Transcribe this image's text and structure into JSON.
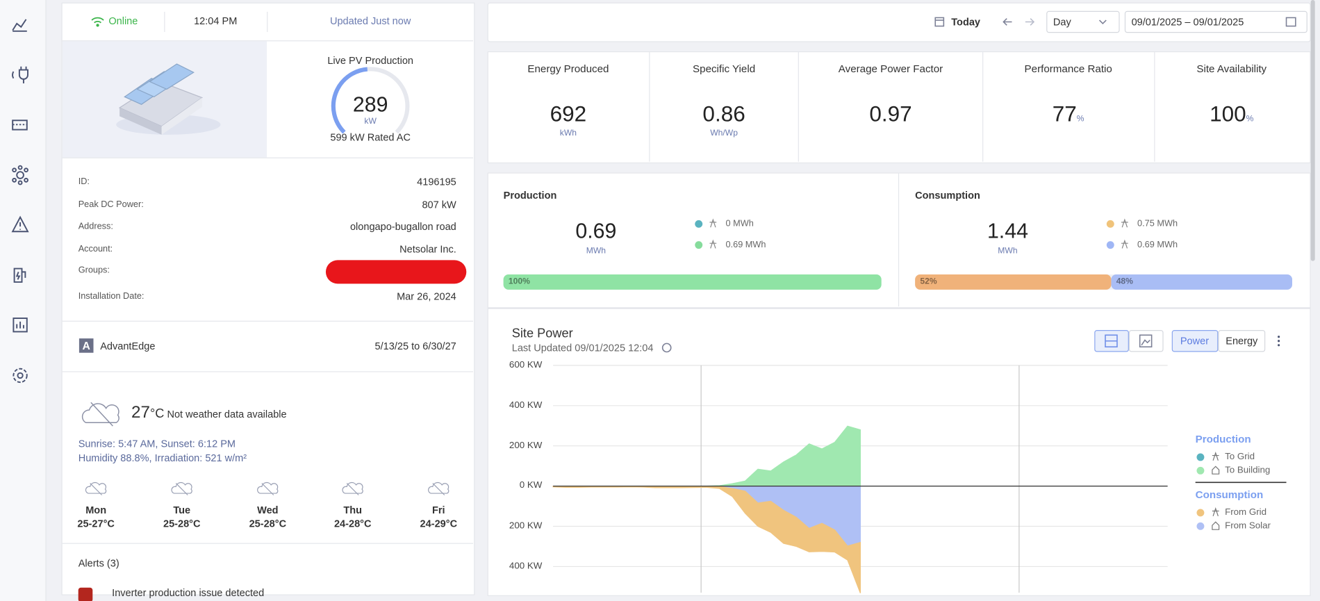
{
  "status": {
    "connection": "Online",
    "time": "12:04 PM",
    "updated": "Updated Just now"
  },
  "live": {
    "title": "Live PV Production",
    "value": 289,
    "unit": "kW",
    "rated": 599,
    "rated_unit": "kW Rated AC"
  },
  "site_info": {
    "rows": [
      {
        "label": "ID:",
        "value": "4196195"
      },
      {
        "label": "Peak DC Power:",
        "value": "807 kW"
      },
      {
        "label": "Address:",
        "value": "olongapo-bugallon road"
      },
      {
        "label": "Account:",
        "value": "Netsolar Inc."
      },
      {
        "label": "Groups:"
      },
      {
        "label": "Installation Date:",
        "value": "Mar 26, 2024"
      }
    ]
  },
  "license": {
    "icon_letter": "A",
    "name": "AdvantEdge",
    "period": "5/13/25 to 6/30/27"
  },
  "weather": {
    "temp": 27,
    "unit": "°C",
    "note": "Not weather data available",
    "sun": "Sunrise: 5:47 AM, Sunset: 6:12 PM",
    "humidity": "Humidity 88.8%, Irradiation: 521 w/m²",
    "forecast": [
      {
        "day": "Mon",
        "temp": "25-27°C"
      },
      {
        "day": "Tue",
        "temp": "25-28°C"
      },
      {
        "day": "Wed",
        "temp": "25-28°C"
      },
      {
        "day": "Thu",
        "temp": "24-28°C"
      },
      {
        "day": "Fri",
        "temp": "24-29°C"
      }
    ]
  },
  "alerts": {
    "title": "Alerts (3)",
    "items": [
      "Inverter production issue detected"
    ]
  },
  "toolbar": {
    "today": "Today",
    "period": "Day",
    "range": "09/01/2025 – 09/01/2025"
  },
  "kpis": [
    {
      "title": "Energy Produced",
      "value": 692,
      "unit": "kWh"
    },
    {
      "title": "Specific Yield",
      "value": 0.86,
      "unit": "Wh/Wp"
    },
    {
      "title": "Average Power Factor",
      "value": 0.97
    },
    {
      "title": "Performance Ratio",
      "value": 77,
      "unit": "%"
    },
    {
      "title": "Site Availability",
      "value": 100,
      "unit": "%"
    }
  ],
  "production": {
    "title": "Production",
    "total": 0.69,
    "unit": "MWh",
    "items": [
      {
        "label": "0 MWh",
        "color": "#5ab3c0"
      },
      {
        "label": "0.69 MWh",
        "color": "#86dc9c"
      }
    ],
    "shares": [
      100
    ],
    "share_labels": [
      "100%"
    ],
    "share_colors": [
      "#8fe3a4"
    ]
  },
  "consumption": {
    "title": "Consumption",
    "total": 1.44,
    "unit": "MWh",
    "items": [
      {
        "label": "0.75 MWh",
        "color": "#f0c37a"
      },
      {
        "label": "0.69 MWh",
        "color": "#9fb6f5"
      }
    ],
    "shares": [
      52,
      48
    ],
    "share_labels": [
      "52%",
      "48%"
    ],
    "share_colors": [
      "#f0b27a",
      "#a9bdf5"
    ]
  },
  "chart_data": {
    "type": "area",
    "title": "Site Power",
    "subtitle": "Last Updated 09/01/2025 12:04",
    "buttons": [
      "Power",
      "Energy"
    ],
    "x": [
      0,
      0.5,
      1,
      1.5,
      2,
      2.5,
      3,
      3.5,
      4,
      4.5,
      5,
      5.5,
      6,
      6.5,
      7,
      7.5,
      8,
      8.5,
      9,
      9.5,
      10,
      10.5,
      11,
      11.5,
      12
    ],
    "xlim": [
      0,
      24
    ],
    "xticks": [
      5.78,
      18.2
    ],
    "ylim": [
      -530,
      600
    ],
    "yticks": [
      {
        "value": 600,
        "label": "600 KW"
      },
      {
        "value": 400,
        "label": "400 KW"
      },
      {
        "value": 200,
        "label": "200 KW"
      },
      {
        "value": 0,
        "label": "0 KW"
      },
      {
        "value": -200,
        "label": "200 KW"
      },
      {
        "value": -400,
        "label": "400 KW"
      }
    ],
    "grid": true,
    "series": [
      {
        "name": "To Grid",
        "group": "Production",
        "color": "#5ab3c0",
        "values": [
          0,
          0,
          0,
          0,
          0,
          0,
          0,
          0,
          0,
          0,
          0,
          0,
          0,
          0,
          0,
          0,
          0,
          0,
          0,
          0,
          0,
          0,
          0,
          0,
          0
        ]
      },
      {
        "name": "To Building",
        "group": "Production",
        "color": "#a0e8b0",
        "values": [
          0,
          0,
          0,
          0,
          0,
          0,
          0,
          0,
          0,
          0,
          0,
          0,
          0,
          2,
          12,
          25,
          84,
          75,
          120,
          155,
          210,
          185,
          218,
          298,
          280
        ]
      },
      {
        "name": "From Grid",
        "group": "Consumption",
        "color": "#f0c47e",
        "values": [
          -4,
          -6,
          -6,
          -5,
          -5,
          -5,
          -4,
          -5,
          -8,
          -8,
          -8,
          -7,
          -6,
          -10,
          -40,
          -110,
          -116,
          -155,
          -165,
          -145,
          -117,
          -140,
          -110,
          -70,
          -252
        ]
      },
      {
        "name": "From Solar",
        "group": "Consumption",
        "color": "#afc0f5",
        "values": [
          0,
          0,
          0,
          0,
          0,
          0,
          0,
          0,
          0,
          0,
          0,
          0,
          0,
          -2,
          -12,
          -25,
          -84,
          -75,
          -120,
          -155,
          -210,
          -185,
          -218,
          -298,
          -280
        ]
      }
    ]
  }
}
